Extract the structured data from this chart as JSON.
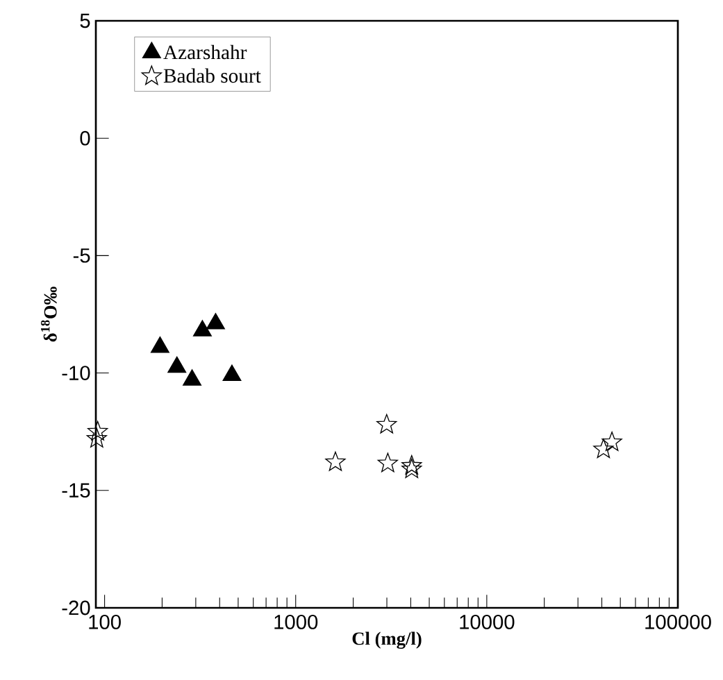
{
  "chart_data": {
    "type": "scatter",
    "xlabel": "Cl (mg/l)",
    "ylabel": "δ$^{18}$O‰",
    "log": "x",
    "xlim": [
      90,
      100000
    ],
    "xticks": [
      100,
      1000,
      10000,
      100000
    ],
    "ylim": [
      -20,
      5
    ],
    "yticks": [
      -20,
      -15,
      -10,
      -5,
      0,
      5
    ],
    "grid": false,
    "legend": "top left",
    "series": [
      {
        "name": "Azarshahr",
        "color": "#000000",
        "marker": "triangle",
        "x": [
          195,
          239,
          287,
          325,
          381,
          464
        ],
        "values": [
          -8.9,
          -9.75,
          -10.3,
          -8.2,
          -7.9,
          -10.1
        ]
      },
      {
        "name": "Badab sourt",
        "color": "#000000",
        "marker": "star",
        "x": [
          92,
          91,
          1614,
          2993,
          3034,
          4047,
          4047,
          40800,
          45200
        ],
        "values": [
          -12.5,
          -12.8,
          -13.8,
          -12.2,
          -13.85,
          -13.95,
          -14.1,
          -13.25,
          -12.95
        ]
      }
    ]
  }
}
